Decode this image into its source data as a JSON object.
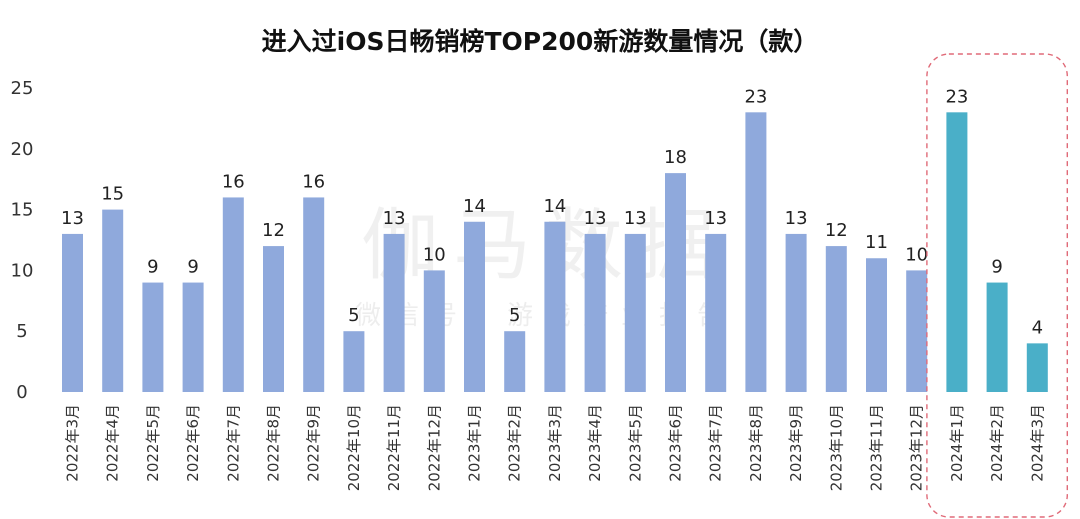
{
  "chart_data": {
    "type": "bar",
    "title": "进入过iOS日畅销榜TOP200新游数量情况（款）",
    "xlabel": "",
    "ylabel": "",
    "ylim": [
      0,
      25
    ],
    "yticks": [
      0,
      5,
      10,
      15,
      20,
      25
    ],
    "grid": false,
    "legend": "none",
    "categories": [
      "2022年3月",
      "2022年4月",
      "2022年5月",
      "2022年6月",
      "2022年7月",
      "2022年8月",
      "2022年9月",
      "2022年10月",
      "2022年11月",
      "2022年12月",
      "2023年1月",
      "2023年2月",
      "2023年3月",
      "2023年4月",
      "2023年5月",
      "2023年6月",
      "2023年7月",
      "2023年8月",
      "2023年9月",
      "2023年10月",
      "2023年11月",
      "2023年12月",
      "2024年1月",
      "2024年2月",
      "2024年3月"
    ],
    "values": [
      13,
      15,
      9,
      9,
      16,
      12,
      16,
      5,
      13,
      10,
      14,
      5,
      14,
      13,
      13,
      18,
      13,
      23,
      13,
      12,
      11,
      10,
      23,
      9,
      4
    ],
    "highlight_categories": [
      "2024年1月",
      "2024年2月",
      "2024年3月"
    ],
    "colors": {
      "bar": "#8fa9dc",
      "highlight_bar": "#4aafc8",
      "highlight_box": "#e06a78"
    }
  },
  "watermark": {
    "main": "伽马数据",
    "sub": "微信号：游戏产业报告"
  }
}
